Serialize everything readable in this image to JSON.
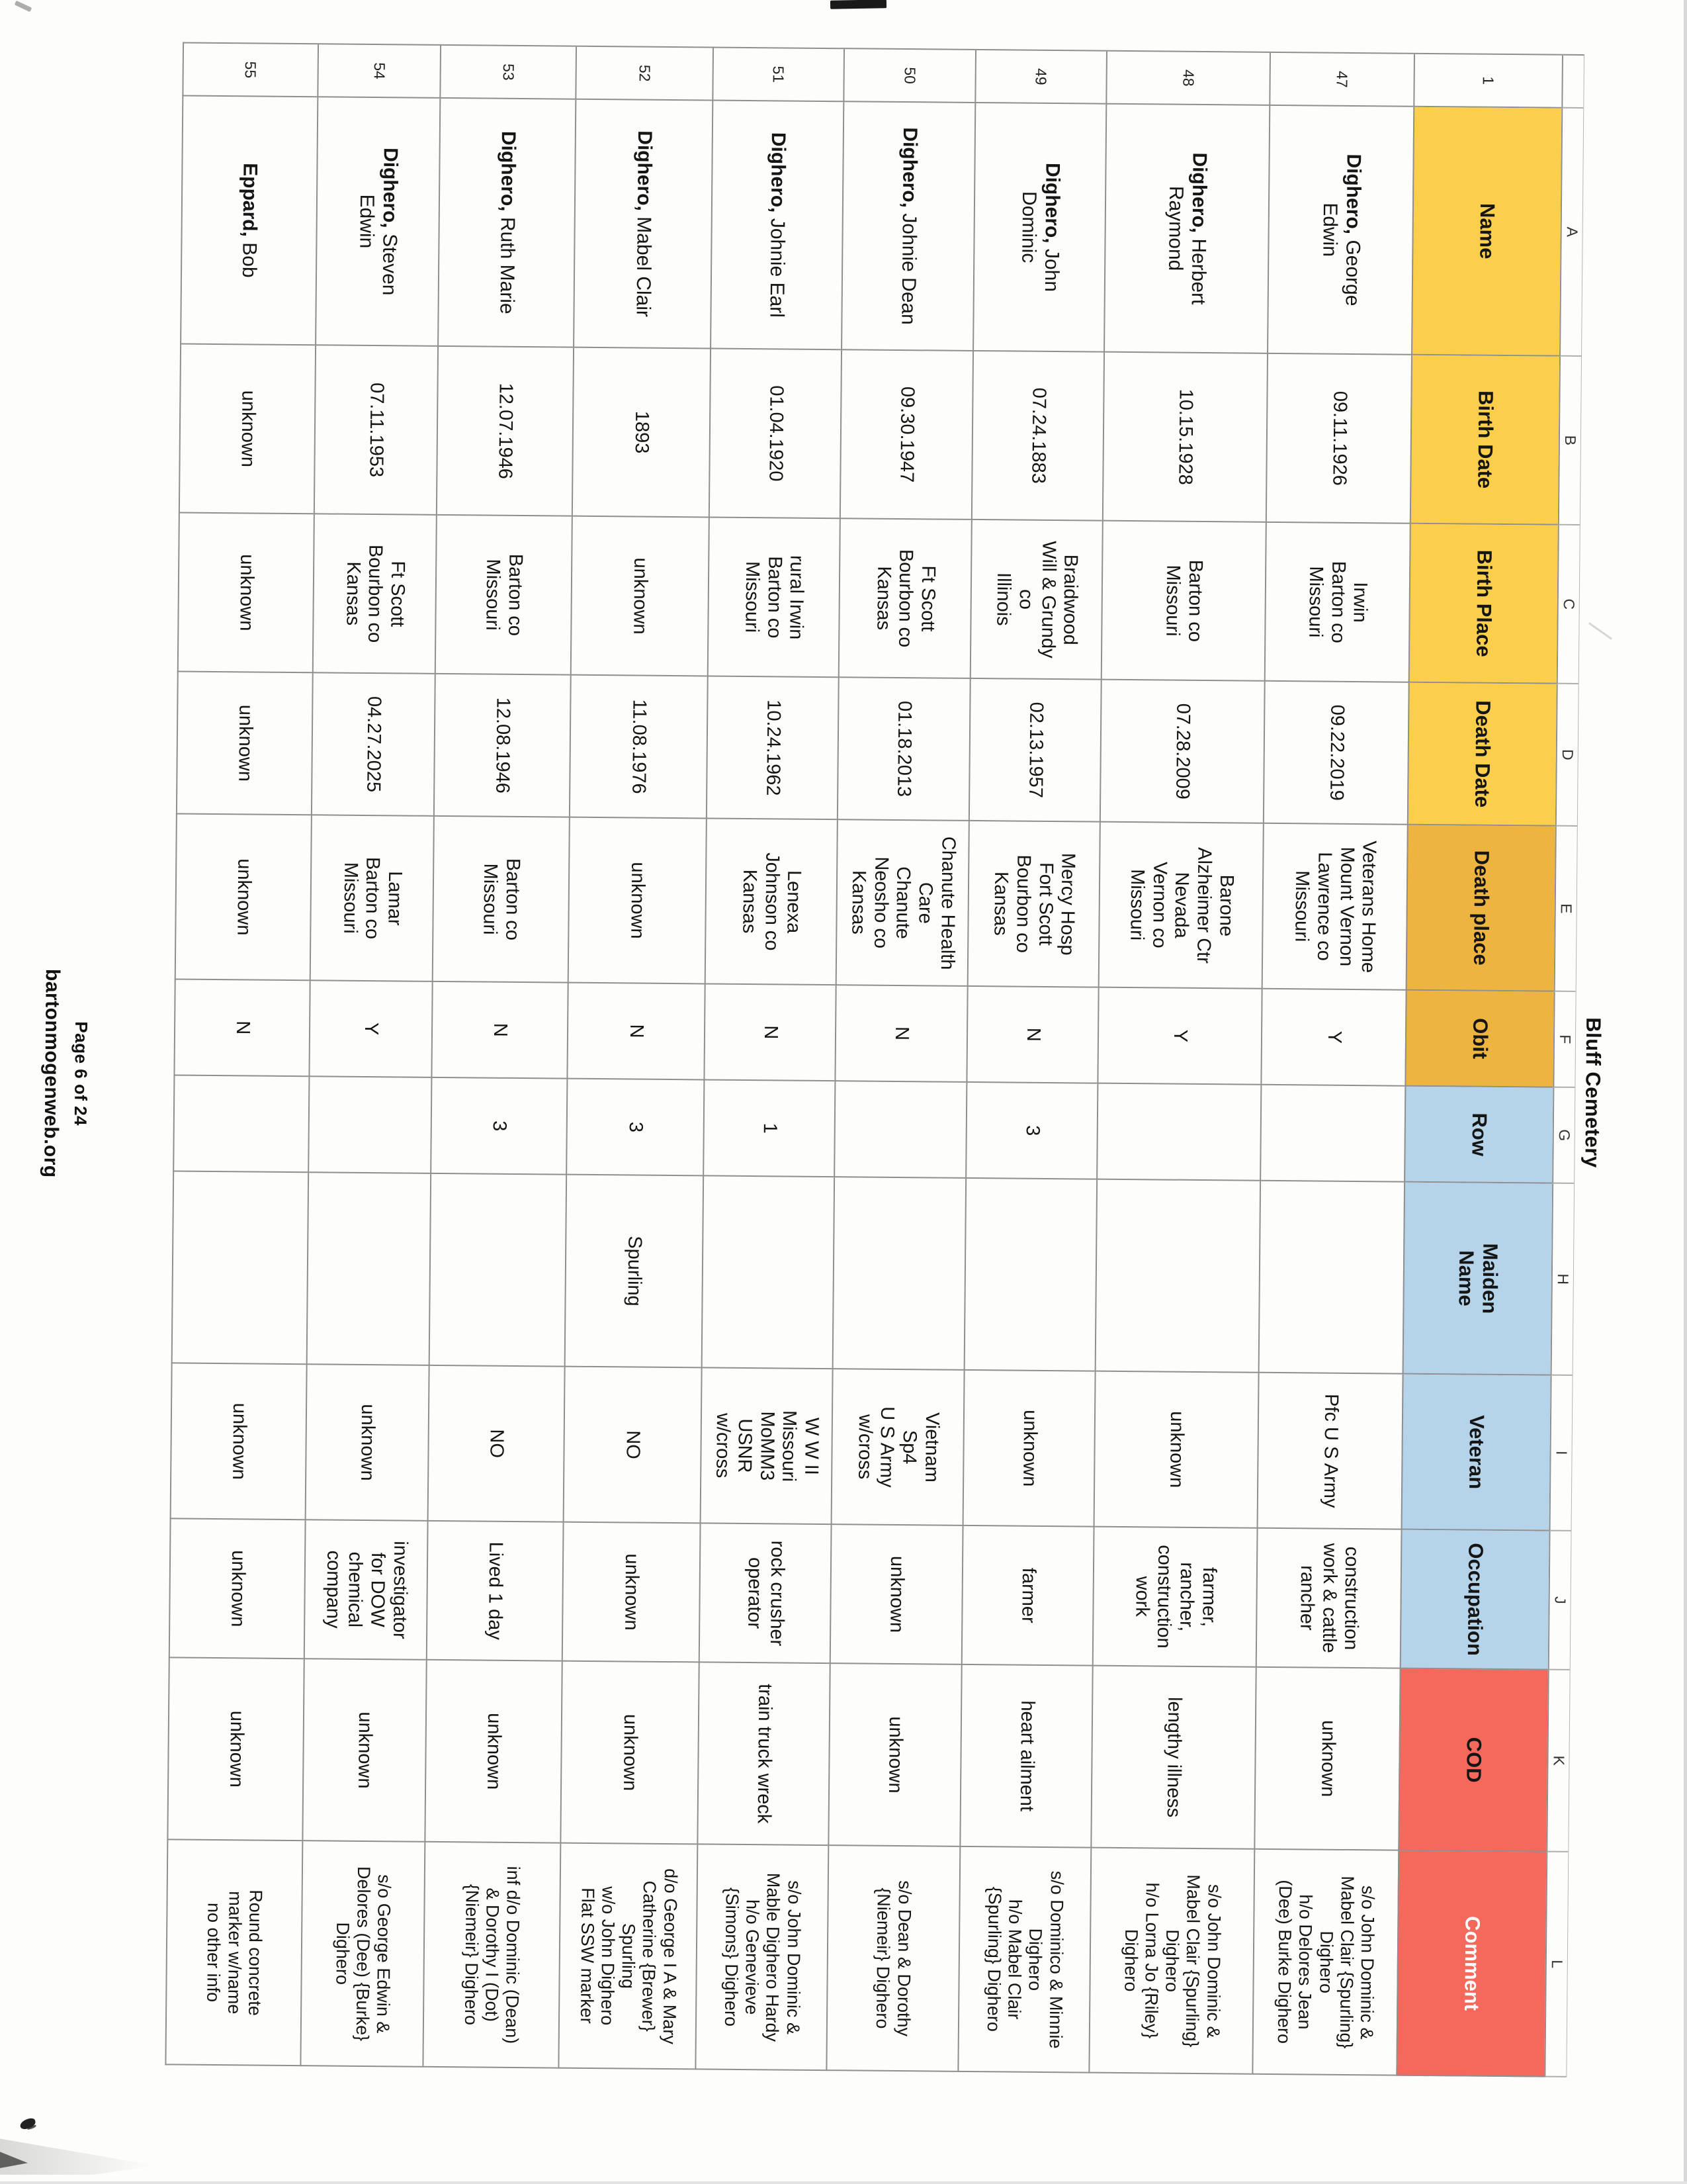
{
  "page": {
    "title": "Bluff Cemetery",
    "footer_page": "Page 6 of 24",
    "footer_site": "bartonmogenweb.org"
  },
  "sheet": {
    "column_letters": [
      "A",
      "B",
      "C",
      "D",
      "E",
      "F",
      "G",
      "H",
      "I",
      "J",
      "K",
      "L"
    ],
    "header_row_number": "1",
    "headers": [
      "Name",
      "Birth Date",
      "Birth Place",
      "Death Date",
      "Death place",
      "Obit",
      "Row",
      "Maiden\nName",
      "Veteran",
      "Occupation",
      "COD",
      "Comment"
    ],
    "colors": {
      "header_yellow": "#fbcf4b",
      "header_amber": "#eeb440",
      "header_blue": "#b5d4ea",
      "header_red": "#f4695c",
      "grid_line": "#8f8f8f"
    },
    "rows": [
      {
        "number": "47",
        "surname": "Dighero,",
        "given": " George\nEdwin",
        "birth_date": "09.11.1926",
        "birth_place": "Irwin\nBarton co\nMissouri",
        "death_date": "09.22.2019",
        "death_place": "Veterans Home\nMount Vernon\nLawrence co\nMissouri",
        "obit": "Y",
        "row": "",
        "maiden": "",
        "veteran": "Pfc U S Army",
        "occupation": "construction\nwork & cattle\nrancher",
        "cod": "unknown",
        "comment": "s/o John Dominic &\nMabel Clair {Spurling}\nDighero\nh/o Delores Jean\n(Dee) Burke Dighero"
      },
      {
        "number": "48",
        "surname": "Dighero,",
        "given": " Herbert\nRaymond",
        "birth_date": "10.15.1928",
        "birth_place": "Barton co\nMissouri",
        "death_date": "07.28.2009",
        "death_place": "Barone\nAlzheimer Ctr\nNevada\nVernon co\nMissouri",
        "obit": "Y",
        "row": "",
        "maiden": "",
        "veteran": "unknown",
        "occupation": "farmer,\nrancher,\nconstruction\nwork",
        "cod": "lengthy illness",
        "comment": "s/o John Dominic &\nMabel Clair {Spurling}\nDighero\nh/o Lorna Jo {Riley}\nDighero"
      },
      {
        "number": "49",
        "surname": "Dighero,",
        "given": " John\nDominic",
        "birth_date": "07.24.1883",
        "birth_place": "Braidwood\nWill & Grundy\nco\nIllinois",
        "death_date": "02.13.1957",
        "death_place": "Mercy Hosp\nFort Scott\nBourbon co\nKansas",
        "obit": "N",
        "row": "3",
        "maiden": "",
        "veteran": "unknown",
        "occupation": "farmer",
        "cod": "heart ailment",
        "comment": "s/o Dominico & Minnie\nDighero\nh/o Mabel Clair\n{Spurling} Dighero"
      },
      {
        "number": "50",
        "surname": "Dighero,",
        "given": " Johnie Dean",
        "birth_date": "09.30.1947",
        "birth_place": "Ft Scott\nBourbon co\nKansas",
        "death_date": "01.18.2013",
        "death_place": "Chanute Health\nCare\nChanute\nNeosho co\nKansas",
        "obit": "N",
        "row": "",
        "maiden": "",
        "veteran": "Vietnam\nSp4\nU S Army\nw/cross",
        "occupation": "unknown",
        "cod": "unknown",
        "comment": "s/o Dean & Dorothy\n{Niemeir} Dighero"
      },
      {
        "number": "51",
        "surname": "Dighero,",
        "given": " Johnie Earl",
        "birth_date": "01.04.1920",
        "birth_place": "rural Irwin\nBarton co\nMissouri",
        "death_date": "10.24.1962",
        "death_place": "Lenexa\nJohnson co\nKansas",
        "obit": "N",
        "row": "1",
        "maiden": "",
        "veteran": "W W II\nMissouri\nMoMM3\nUSNR\nw/cross",
        "occupation": "rock crusher\noperator",
        "cod": "train truck wreck",
        "comment": "s/o John Dominic &\nMable Dighero Hardy\nh/o Genevieve\n{Simons} Dighero"
      },
      {
        "number": "52",
        "surname": "Dighero,",
        "given": " Mabel Clair",
        "birth_date": "1893",
        "birth_place": "unknown",
        "death_date": "11.08.1976",
        "death_place": "unknown",
        "obit": "N",
        "row": "3",
        "maiden": "Spurling",
        "veteran": "NO",
        "occupation": "unknown",
        "cod": "unknown",
        "comment": "d/o George I A & Mary\nCatherine {Brewer}\nSpurling\nw/o John Dighero\nFlat SSW marker"
      },
      {
        "number": "53",
        "surname": "Dighero,",
        "given": " Ruth Marie",
        "birth_date": "12.07.1946",
        "birth_place": "Barton co\nMissouri",
        "death_date": "12.08.1946",
        "death_place": "Barton co\nMissouri",
        "obit": "N",
        "row": "3",
        "maiden": "",
        "veteran": "NO",
        "occupation": "Lived 1 day",
        "cod": "unknown",
        "comment": "inf d/o Dominic (Dean)\n& Dorothy I (Dot)\n{Niemeir} Dighero"
      },
      {
        "number": "54",
        "surname": "Dighero,",
        "given": " Steven\nEdwin",
        "birth_date": "07.11.1953",
        "birth_place": "Ft Scott\nBourbon co\nKansas",
        "death_date": "04.27.2025",
        "death_place": "Lamar\nBarton co\nMissouri",
        "obit": "Y",
        "row": "",
        "maiden": "",
        "veteran": "unknown",
        "occupation": "investigator\nfor DOW\nchemical\ncompany",
        "cod": "unknown",
        "comment": "s/o George Edwin &\nDelores (Dee) {Burke}\nDighero"
      },
      {
        "number": "55",
        "surname": "Eppard,",
        "given": " Bob",
        "birth_date": "unknown",
        "birth_place": "unknown",
        "death_date": "unknown",
        "death_place": "unknown",
        "obit": "N",
        "row": "",
        "maiden": "",
        "veteran": "unknown",
        "occupation": "unknown",
        "cod": "unknown",
        "comment": "Round concrete\nmarker w/name\nno other info"
      }
    ]
  }
}
